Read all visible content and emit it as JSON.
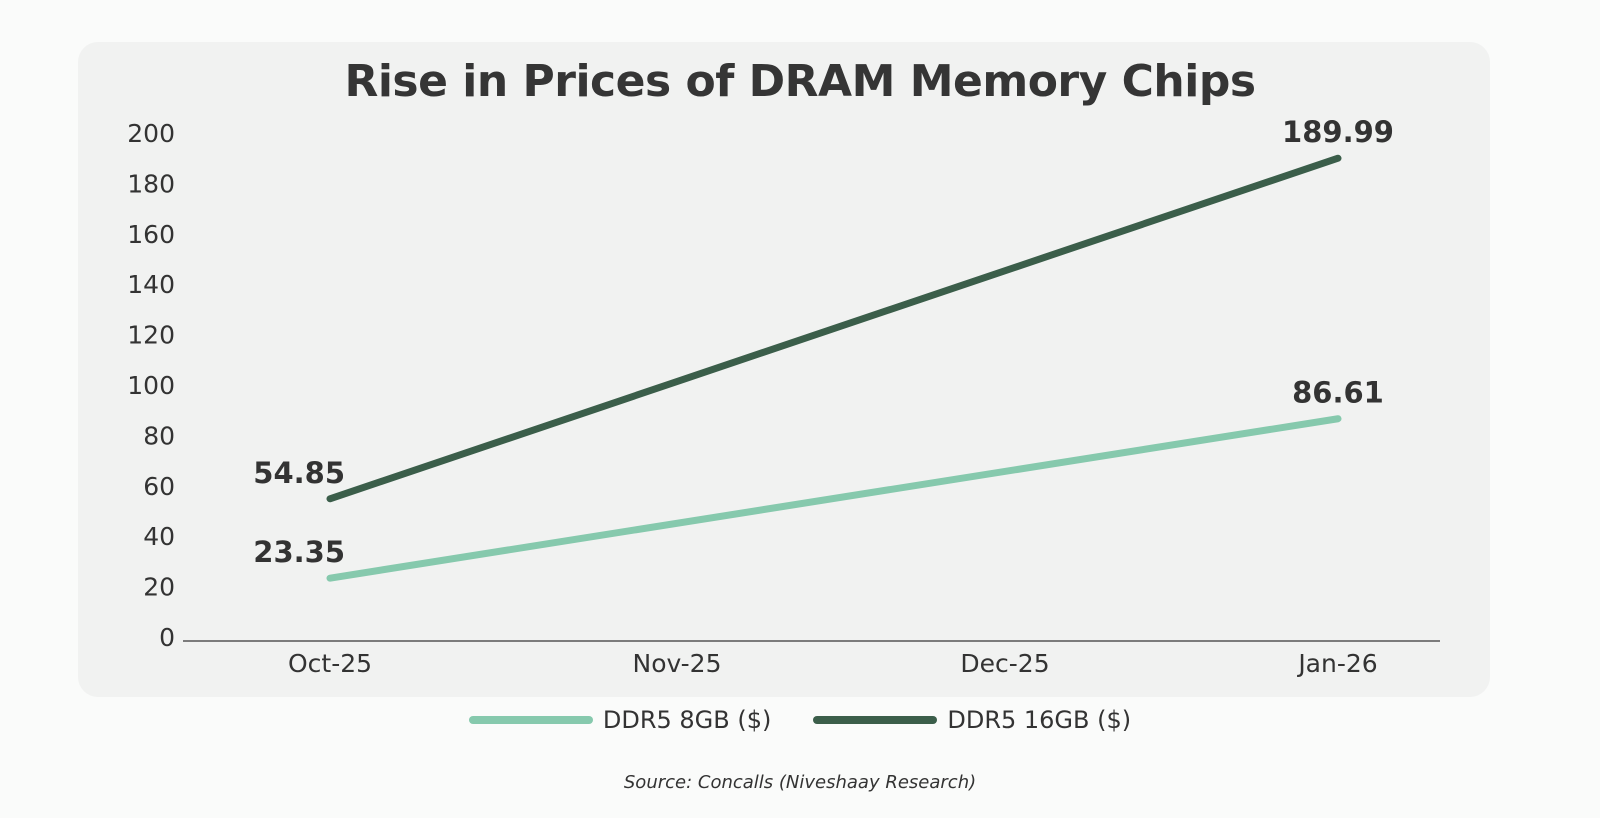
{
  "chart_data": {
    "type": "line",
    "title": "Rise in Prices of DRAM Memory Chips",
    "categories": [
      "Oct-25",
      "Nov-25",
      "Dec-25",
      "Jan-26"
    ],
    "series": [
      {
        "name": "DDR5 8GB ($)",
        "color": "#86c9ad",
        "values": [
          23.35,
          null,
          null,
          86.61
        ],
        "data_labels": [
          "23.35",
          "",
          "",
          "86.61"
        ]
      },
      {
        "name": "DDR5 16GB ($)",
        "color": "#3b5e4a",
        "values": [
          54.85,
          null,
          null,
          189.99
        ],
        "data_labels": [
          "54.85",
          "",
          "",
          "189.99"
        ]
      }
    ],
    "yticks": [
      "0",
      "20",
      "40",
      "60",
      "80",
      "100",
      "120",
      "140",
      "160",
      "180",
      "200"
    ],
    "ylim": [
      0,
      200
    ],
    "grid": false,
    "legend": "bottom",
    "xlabel": "",
    "ylabel": ""
  },
  "source": "Source: Concalls (Niveshaay Research)"
}
